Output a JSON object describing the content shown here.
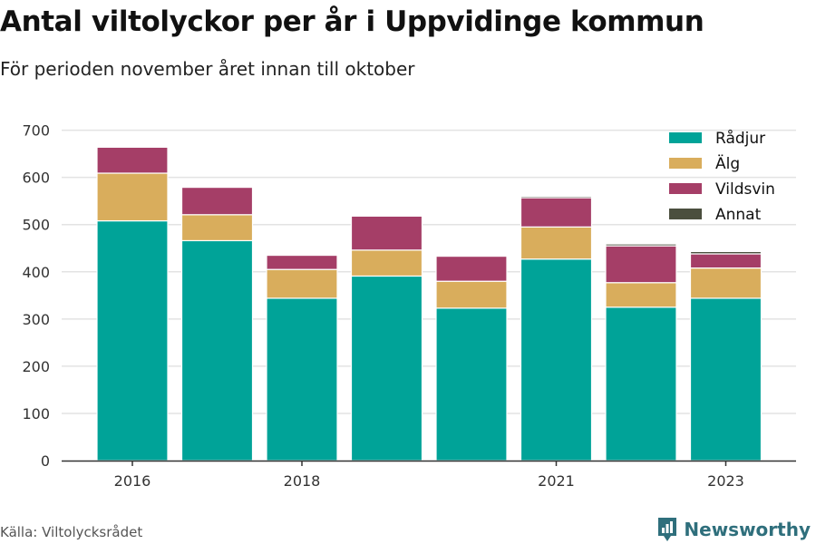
{
  "header": {
    "title": "Antal viltolyckor per år i Uppvidinge kommun",
    "subtitle": "För perioden november året innan till oktober"
  },
  "footer": {
    "source": "Källa: Viltolycksrådet",
    "brand": "Newsworthy"
  },
  "colors": {
    "Rådjur": "#00a398",
    "Älg": "#d9ad5c",
    "Vildsvin": "#a53e67",
    "Annat": "#4b4f3e",
    "grid": "#e3e3e3",
    "axis": "#333333",
    "brand": "#2f6f7c"
  },
  "chart_data": {
    "type": "bar",
    "stacked": true,
    "categories": [
      "2016",
      "2017",
      "2018",
      "2019",
      "2020",
      "2021",
      "2022",
      "2023"
    ],
    "x_tick_labels": [
      "2016",
      "",
      "2018",
      "",
      "",
      "2021",
      "",
      "2023"
    ],
    "series": [
      {
        "name": "Rådjur",
        "values": [
          508,
          466,
          344,
          391,
          323,
          427,
          325,
          344
        ]
      },
      {
        "name": "Älg",
        "values": [
          101,
          55,
          61,
          55,
          57,
          68,
          52,
          64
        ]
      },
      {
        "name": "Vildsvin",
        "values": [
          55,
          58,
          30,
          72,
          53,
          62,
          78,
          30
        ]
      },
      {
        "name": "Annat",
        "values": [
          0,
          0,
          0,
          0,
          0,
          3,
          4,
          5
        ]
      }
    ],
    "y_ticks": [
      0,
      100,
      200,
      300,
      400,
      500,
      600,
      700
    ],
    "ylim": [
      0,
      730
    ],
    "grid": true,
    "legend_position": "top-right"
  }
}
